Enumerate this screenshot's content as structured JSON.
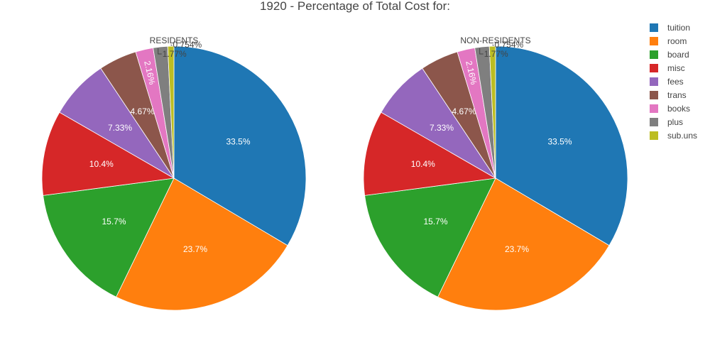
{
  "chart_data": {
    "type": "pie",
    "title": "1920 - Percentage of Total Cost for:",
    "legend_position": "top-right",
    "categories": [
      "tuition",
      "room",
      "board",
      "misc",
      "fees",
      "trans",
      "books",
      "plus",
      "sub.uns"
    ],
    "colors": [
      "#1f77b4",
      "#ff7f0e",
      "#2ca02c",
      "#d62728",
      "#9467bd",
      "#8c564b",
      "#e377c2",
      "#7f7f7f",
      "#bcbd22"
    ],
    "pies": [
      {
        "name": "RESIDENTS",
        "values": [
          33.5,
          23.7,
          15.7,
          10.4,
          7.33,
          4.67,
          2.16,
          1.77,
          0.754
        ],
        "labels": [
          "33.5%",
          "23.7%",
          "15.7%",
          "10.4%",
          "7.33%",
          "4.67%",
          "2.16%",
          "1.77%",
          "0.754%"
        ]
      },
      {
        "name": "NON-RESIDENTS",
        "values": [
          33.5,
          23.7,
          15.7,
          10.4,
          7.33,
          4.67,
          2.16,
          1.77,
          0.754
        ],
        "labels": [
          "33.5%",
          "23.7%",
          "15.7%",
          "10.4%",
          "7.33%",
          "4.67%",
          "2.16%",
          "1.77%",
          "0.754%"
        ]
      }
    ]
  }
}
